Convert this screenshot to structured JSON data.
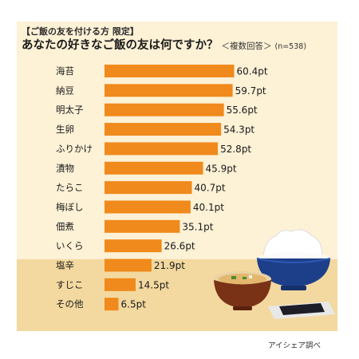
{
  "header": {
    "subtitle": "【ご飯の友を付ける方 限定】",
    "title": "あなたの好きなご飯の友は何ですか？",
    "note": "＜複数回答＞",
    "sample": "(n=538)"
  },
  "credit": "アイシェア調べ",
  "colors": {
    "bar": "#f08a1c",
    "background": "#fdf1d6",
    "table": "#f3d99f"
  },
  "chart_data": {
    "type": "bar",
    "orientation": "horizontal",
    "categories": [
      "海苔",
      "納豆",
      "明太子",
      "生卵",
      "ふりかけ",
      "漬物",
      "たらこ",
      "梅ぼし",
      "佃煮",
      "いくら",
      "塩辛",
      "すじこ",
      "その他"
    ],
    "values": [
      60.4,
      59.7,
      55.6,
      54.3,
      52.8,
      45.9,
      40.7,
      40.1,
      35.1,
      26.6,
      21.9,
      14.5,
      6.5
    ],
    "value_labels": [
      "60.4pt",
      "59.7pt",
      "55.6pt",
      "54.3pt",
      "52.8pt",
      "45.9pt",
      "40.7pt",
      "40.1pt",
      "35.1pt",
      "26.6pt",
      "21.9pt",
      "14.5pt",
      "6.5pt"
    ],
    "unit": "pt",
    "grid": false,
    "legend": "none"
  }
}
